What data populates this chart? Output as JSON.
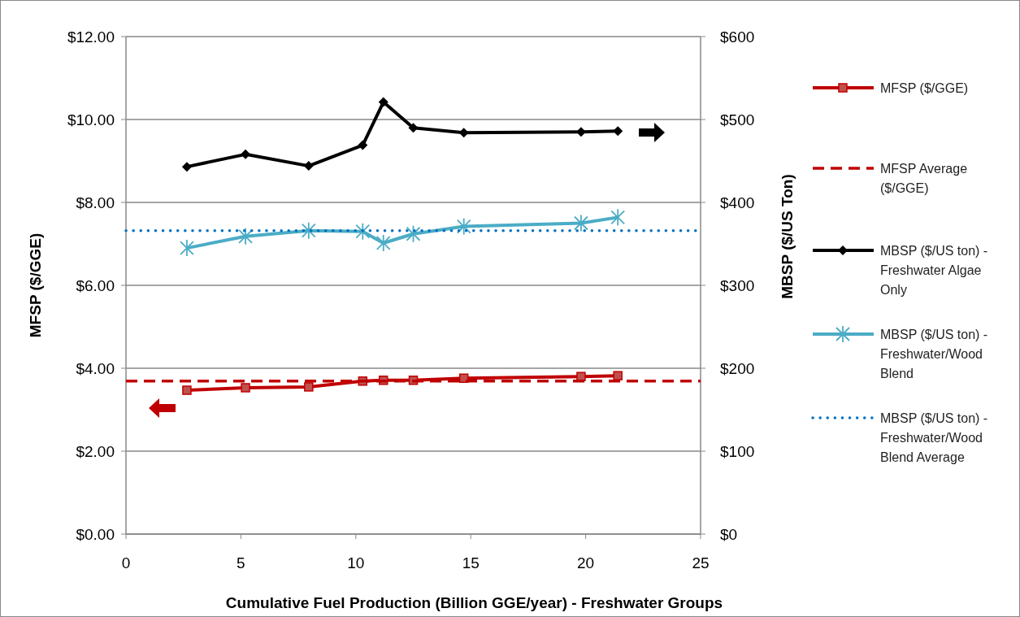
{
  "chart_data": {
    "type": "line",
    "xlabel": "Cumulative Fuel Production (Billion GGE/year) - Freshwater Groups",
    "ylabel": "MFSP ($/GGE)",
    "y2label": "MBSP ($/US Ton)",
    "xlim": [
      0,
      25
    ],
    "xticks": [
      0,
      5,
      10,
      15,
      20,
      25
    ],
    "ylim": [
      0,
      12
    ],
    "yticks": [
      {
        "value": 0,
        "label": "$0.00"
      },
      {
        "value": 2,
        "label": "$2.00"
      },
      {
        "value": 4,
        "label": "$4.00"
      },
      {
        "value": 6,
        "label": "$6.00"
      },
      {
        "value": 8,
        "label": "$8.00"
      },
      {
        "value": 10,
        "label": "$10.00"
      },
      {
        "value": 12,
        "label": "$12.00"
      }
    ],
    "y2lim": [
      0,
      600
    ],
    "y2ticks": [
      {
        "value": 0,
        "label": "$0"
      },
      {
        "value": 100,
        "label": "$100"
      },
      {
        "value": 200,
        "label": "$200"
      },
      {
        "value": 300,
        "label": "$300"
      },
      {
        "value": 400,
        "label": "$400"
      },
      {
        "value": 500,
        "label": "$500"
      },
      {
        "value": 600,
        "label": "$600"
      }
    ],
    "grid": "y",
    "legend": "right",
    "series": [
      {
        "name": "MFSP ($/GGE)",
        "color": "#c00000",
        "marker": "square",
        "line_style": "solid",
        "x": [
          2.65,
          5.2,
          7.95,
          10.3,
          11.2,
          12.5,
          14.7,
          19.8,
          21.4
        ],
        "values": [
          3.47,
          3.53,
          3.55,
          3.69,
          3.71,
          3.71,
          3.76,
          3.8,
          3.82
        ]
      },
      {
        "name": "MFSP Average ($/GGE)",
        "color": "#c00000",
        "marker": "none",
        "line_style": "dashed",
        "x": [
          0,
          25
        ],
        "values": [
          3.69,
          3.69
        ]
      },
      {
        "name": "MBSP ($/US ton) - Freshwater Algae Only",
        "color": "#000000",
        "marker": "diamond",
        "line_style": "solid",
        "axis": "y2",
        "x": [
          2.65,
          5.2,
          7.95,
          10.3,
          11.2,
          12.5,
          14.7,
          19.8,
          21.4
        ],
        "values": [
          443,
          458,
          444,
          469,
          521,
          490,
          484,
          485,
          486
        ]
      },
      {
        "name": "MBSP ($/US ton) - Freshwater/Wood Blend",
        "color": "#4bacc6",
        "marker": "cross",
        "line_style": "solid",
        "axis": "y2",
        "x": [
          2.65,
          5.2,
          7.95,
          10.3,
          11.2,
          12.5,
          14.7,
          19.8,
          21.4
        ],
        "values": [
          345,
          359,
          366,
          365,
          351,
          362,
          371,
          375,
          382
        ]
      },
      {
        "name": "MBSP ($/US ton) - Freshwater/Wood Blend Average",
        "color": "#0070c0",
        "marker": "none",
        "line_style": "dotted",
        "axis": "y2",
        "x": [
          0,
          25
        ],
        "values": [
          366,
          366
        ]
      }
    ]
  }
}
